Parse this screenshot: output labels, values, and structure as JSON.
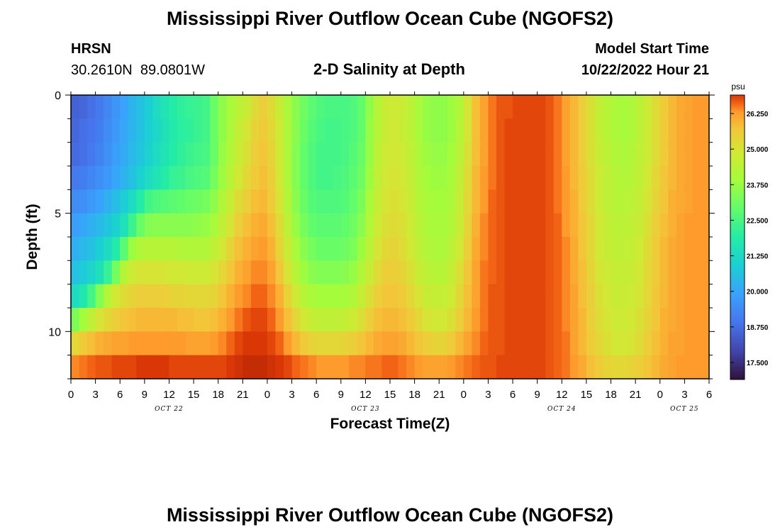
{
  "header": {
    "title": "Mississippi River Outflow Ocean Cube (NGOFS2)",
    "station_id": "HRSN",
    "coordinates": "30.2610N  89.0801W",
    "plot_title": "2-D Salinity at Depth",
    "model_start_label": "Model Start Time",
    "model_start_value": "10/22/2022 Hour 21"
  },
  "footer": {
    "title": "Mississippi River Outflow Ocean Cube (NGOFS2)"
  },
  "chart_data": {
    "type": "heatmap",
    "title": "2-D Salinity at Depth",
    "xlabel": "Forecast Time(Z)",
    "ylabel": "Depth (ft)",
    "x_hours_range": [
      0,
      78
    ],
    "y_depth_range": [
      0,
      12
    ],
    "x_tick_labels": [
      "0",
      "3",
      "6",
      "9",
      "12",
      "15",
      "18",
      "21",
      "0",
      "3",
      "6",
      "9",
      "12",
      "15",
      "18",
      "21",
      "0",
      "3",
      "6",
      "9",
      "12",
      "15",
      "18",
      "21",
      "0",
      "3",
      "6"
    ],
    "date_labels": [
      {
        "text": "OCT 22",
        "hour": 12
      },
      {
        "text": "OCT 23",
        "hour": 36
      },
      {
        "text": "OCT 24",
        "hour": 60
      },
      {
        "text": "OCT 25",
        "hour": 75
      }
    ],
    "y_ticks": [
      {
        "label": "0",
        "depth": 0
      },
      {
        "label": "5",
        "depth": 5
      },
      {
        "label": "10",
        "depth": 10
      }
    ],
    "colorbar": {
      "unit": "psu",
      "min": 16.9,
      "max": 26.9,
      "tick_labels": [
        "26.250",
        "25.000",
        "23.750",
        "22.500",
        "21.250",
        "20.000",
        "18.750",
        "17.500"
      ],
      "tick_values": [
        26.25,
        25.0,
        23.75,
        22.5,
        21.25,
        20.0,
        18.75,
        17.5
      ]
    },
    "depth_levels": [
      0.5,
      1.5,
      2.5,
      3.5,
      4.5,
      5.5,
      6.5,
      7.5,
      8.5,
      9.5,
      10.5,
      11.5
    ],
    "time_hours": [
      0,
      1,
      2,
      3,
      4,
      5,
      6,
      7,
      8,
      9,
      10,
      11,
      12,
      13,
      14,
      15,
      16,
      17,
      18,
      19,
      20,
      21,
      22,
      23,
      24,
      25,
      26,
      27,
      28,
      29,
      30,
      31,
      32,
      33,
      34,
      35,
      36,
      37,
      38,
      39,
      40,
      41,
      42,
      43,
      44,
      45,
      46,
      47,
      48,
      49,
      50,
      51,
      52,
      53,
      54,
      55,
      56,
      57,
      58,
      59,
      60,
      61,
      62,
      63,
      64,
      65,
      66,
      67,
      68,
      69,
      70,
      71,
      72,
      73,
      74,
      75,
      76,
      77
    ],
    "salinity_psu": [
      [
        18.5,
        18.6,
        18.8,
        19.0,
        19.3,
        19.6,
        19.9,
        20.3,
        20.6,
        20.9,
        21.3,
        21.6,
        21.9,
        22.1,
        22.2,
        22.3,
        22.4,
        23.0,
        23.6,
        24.0,
        24.4,
        24.7,
        25.2,
        25.5,
        25.2,
        24.7,
        24.1,
        23.5,
        23.1,
        22.8,
        22.6,
        22.5,
        22.5,
        22.5,
        22.6,
        22.9,
        23.6,
        24.3,
        24.7,
        24.8,
        24.7,
        24.4,
        24.0,
        23.7,
        23.6,
        23.6,
        23.8,
        24.2,
        25.0,
        25.8,
        26.2,
        26.5,
        26.7,
        26.7,
        26.8,
        26.8,
        26.8,
        26.8,
        26.7,
        26.5,
        26.2,
        25.9,
        25.5,
        25.1,
        24.6,
        24.3,
        24.1,
        24.0,
        24.1,
        24.4,
        24.8,
        25.2,
        25.6,
        25.9,
        26.1,
        26.2,
        26.3,
        26.3
      ],
      [
        18.6,
        18.8,
        18.9,
        19.1,
        19.4,
        19.7,
        20.0,
        20.3,
        20.6,
        20.9,
        21.2,
        21.5,
        21.8,
        22.0,
        22.1,
        22.3,
        22.4,
        23.0,
        23.6,
        24.1,
        24.6,
        25.0,
        25.4,
        25.6,
        25.3,
        24.8,
        24.1,
        23.5,
        23.0,
        22.7,
        22.5,
        22.4,
        22.4,
        22.5,
        22.6,
        22.9,
        23.7,
        24.3,
        24.7,
        24.9,
        24.7,
        24.4,
        24.0,
        23.7,
        23.6,
        23.6,
        23.8,
        24.3,
        25.0,
        25.8,
        26.2,
        26.5,
        26.7,
        26.8,
        26.8,
        26.8,
        26.8,
        26.8,
        26.7,
        26.5,
        26.2,
        25.9,
        25.5,
        25.1,
        24.6,
        24.3,
        24.1,
        24.0,
        24.1,
        24.4,
        24.8,
        25.2,
        25.6,
        25.9,
        26.1,
        26.2,
        26.3,
        26.3
      ],
      [
        18.7,
        18.8,
        19.0,
        19.2,
        19.5,
        19.8,
        20.1,
        20.4,
        20.7,
        21.0,
        21.3,
        21.6,
        21.9,
        22.1,
        22.3,
        22.4,
        22.5,
        23.0,
        23.7,
        24.2,
        24.7,
        25.1,
        25.5,
        25.7,
        25.4,
        24.8,
        24.1,
        23.4,
        22.9,
        22.6,
        22.4,
        22.4,
        22.4,
        22.5,
        22.7,
        23.0,
        23.7,
        24.4,
        24.8,
        24.9,
        24.8,
        24.5,
        24.1,
        23.8,
        23.7,
        23.7,
        23.9,
        24.4,
        25.1,
        25.8,
        26.2,
        26.5,
        26.7,
        26.8,
        26.8,
        26.8,
        26.8,
        26.8,
        26.7,
        26.5,
        26.2,
        25.9,
        25.5,
        25.1,
        24.7,
        24.4,
        24.2,
        24.1,
        24.2,
        24.5,
        24.8,
        25.2,
        25.6,
        25.9,
        26.1,
        26.2,
        26.3,
        26.3
      ],
      [
        19.0,
        19.1,
        19.3,
        19.5,
        19.7,
        20.0,
        20.3,
        20.6,
        21.0,
        21.3,
        21.6,
        21.9,
        22.2,
        22.3,
        22.5,
        22.6,
        22.7,
        23.2,
        23.8,
        24.4,
        24.9,
        25.3,
        25.6,
        25.8,
        25.5,
        24.9,
        24.1,
        23.4,
        22.9,
        22.6,
        22.4,
        22.4,
        22.5,
        22.6,
        22.8,
        23.1,
        23.8,
        24.5,
        24.9,
        25.0,
        24.9,
        24.6,
        24.2,
        23.9,
        23.8,
        23.8,
        24.0,
        24.5,
        25.2,
        25.9,
        26.3,
        26.5,
        26.7,
        26.8,
        26.8,
        26.8,
        26.8,
        26.8,
        26.7,
        26.5,
        26.3,
        25.9,
        25.6,
        25.2,
        24.8,
        24.5,
        24.3,
        24.2,
        24.3,
        24.5,
        24.9,
        25.3,
        25.7,
        25.9,
        26.1,
        26.2,
        26.3,
        26.3
      ],
      [
        19.4,
        19.5,
        19.7,
        19.9,
        20.2,
        20.5,
        20.9,
        21.3,
        21.9,
        22.4,
        22.6,
        22.7,
        22.8,
        22.9,
        23.0,
        23.1,
        23.2,
        23.6,
        24.2,
        24.7,
        25.2,
        25.5,
        25.8,
        25.9,
        25.6,
        25.0,
        24.2,
        23.5,
        23.0,
        22.7,
        22.6,
        22.6,
        22.6,
        22.7,
        22.9,
        23.3,
        24.0,
        24.6,
        25.0,
        25.1,
        25.0,
        24.7,
        24.3,
        24.0,
        23.9,
        23.9,
        24.1,
        24.6,
        25.3,
        25.9,
        26.3,
        26.6,
        26.7,
        26.8,
        26.8,
        26.8,
        26.8,
        26.8,
        26.7,
        26.5,
        26.3,
        26.0,
        25.6,
        25.2,
        24.8,
        24.5,
        24.3,
        24.3,
        24.4,
        24.6,
        25.0,
        25.4,
        25.7,
        26.0,
        26.1,
        26.2,
        26.3,
        26.3
      ],
      [
        19.8,
        20.0,
        20.2,
        20.4,
        20.7,
        21.0,
        21.5,
        22.3,
        23.0,
        23.4,
        23.5,
        23.5,
        23.5,
        23.5,
        23.5,
        23.6,
        23.7,
        24.0,
        24.5,
        25.0,
        25.5,
        25.8,
        26.0,
        26.1,
        25.8,
        25.2,
        24.4,
        23.7,
        23.2,
        22.9,
        22.8,
        22.8,
        22.8,
        22.9,
        23.1,
        23.5,
        24.2,
        24.8,
        25.1,
        25.2,
        25.1,
        24.8,
        24.4,
        24.1,
        24.0,
        24.0,
        24.2,
        24.7,
        25.4,
        26.0,
        26.4,
        26.6,
        26.7,
        26.8,
        26.8,
        26.8,
        26.8,
        26.8,
        26.7,
        26.6,
        26.3,
        26.0,
        25.7,
        25.3,
        24.9,
        24.6,
        24.4,
        24.4,
        24.5,
        24.7,
        25.1,
        25.5,
        25.8,
        26.0,
        26.2,
        26.3,
        26.3,
        26.3
      ],
      [
        20.2,
        20.4,
        20.6,
        20.9,
        21.3,
        21.8,
        22.8,
        23.8,
        24.2,
        24.3,
        24.3,
        24.3,
        24.3,
        24.2,
        24.2,
        24.2,
        24.2,
        24.5,
        24.9,
        25.4,
        25.8,
        26.0,
        26.2,
        26.3,
        26.0,
        25.4,
        24.7,
        24.0,
        23.5,
        23.2,
        23.0,
        23.0,
        23.0,
        23.1,
        23.3,
        23.8,
        24.4,
        25.0,
        25.3,
        25.4,
        25.2,
        24.9,
        24.5,
        24.2,
        24.1,
        24.1,
        24.4,
        24.9,
        25.5,
        26.1,
        26.4,
        26.6,
        26.7,
        26.8,
        26.8,
        26.8,
        26.8,
        26.8,
        26.7,
        26.6,
        26.4,
        26.1,
        25.7,
        25.3,
        24.9,
        24.7,
        24.5,
        24.5,
        24.6,
        24.8,
        25.2,
        25.6,
        25.9,
        26.1,
        26.2,
        26.3,
        26.3,
        26.3
      ],
      [
        20.6,
        20.8,
        21.1,
        21.5,
        22.2,
        23.2,
        24.3,
        24.8,
        25.0,
        25.0,
        25.0,
        25.0,
        24.9,
        24.9,
        24.8,
        24.8,
        24.8,
        25.0,
        25.3,
        25.7,
        26.0,
        26.2,
        26.4,
        26.4,
        26.2,
        25.7,
        25.0,
        24.3,
        23.8,
        23.5,
        23.4,
        23.4,
        23.4,
        23.5,
        23.7,
        24.2,
        24.7,
        25.2,
        25.5,
        25.5,
        25.4,
        25.1,
        24.7,
        24.4,
        24.3,
        24.3,
        24.6,
        25.1,
        25.7,
        26.2,
        26.5,
        26.6,
        26.7,
        26.8,
        26.8,
        26.8,
        26.8,
        26.8,
        26.7,
        26.6,
        26.4,
        26.1,
        25.8,
        25.4,
        25.0,
        24.8,
        24.6,
        24.6,
        24.7,
        24.9,
        25.3,
        25.6,
        25.9,
        26.1,
        26.2,
        26.3,
        26.3,
        26.3
      ],
      [
        21.3,
        21.7,
        22.4,
        23.4,
        24.3,
        24.9,
        25.2,
        25.4,
        25.5,
        25.5,
        25.5,
        25.5,
        25.4,
        25.4,
        25.3,
        25.3,
        25.3,
        25.4,
        25.7,
        26.0,
        26.3,
        26.4,
        26.6,
        26.6,
        26.4,
        26.0,
        25.4,
        24.8,
        24.3,
        24.0,
        23.9,
        23.9,
        23.9,
        24.0,
        24.2,
        24.6,
        25.1,
        25.5,
        25.7,
        25.7,
        25.6,
        25.3,
        25.0,
        24.7,
        24.6,
        24.6,
        24.8,
        25.3,
        25.8,
        26.2,
        26.5,
        26.7,
        26.7,
        26.8,
        26.8,
        26.8,
        26.8,
        26.8,
        26.7,
        26.6,
        26.4,
        26.2,
        25.8,
        25.5,
        25.1,
        24.9,
        24.7,
        24.7,
        24.8,
        25.0,
        25.3,
        25.7,
        25.9,
        26.1,
        26.2,
        26.3,
        26.3,
        26.3
      ],
      [
        23.3,
        23.9,
        24.5,
        25.0,
        25.3,
        25.5,
        25.7,
        25.8,
        25.9,
        25.9,
        25.9,
        25.9,
        25.9,
        25.8,
        25.8,
        25.7,
        25.7,
        25.8,
        26.0,
        26.3,
        26.5,
        26.7,
        26.8,
        26.8,
        26.6,
        26.3,
        25.8,
        25.3,
        24.9,
        24.6,
        24.5,
        24.5,
        24.5,
        24.6,
        24.8,
        25.1,
        25.5,
        25.8,
        25.9,
        25.9,
        25.8,
        25.6,
        25.3,
        25.0,
        24.9,
        24.9,
        25.1,
        25.5,
        25.9,
        26.3,
        26.5,
        26.7,
        26.7,
        26.8,
        26.8,
        26.8,
        26.8,
        26.8,
        26.7,
        26.6,
        26.4,
        26.2,
        25.9,
        25.5,
        25.2,
        25.0,
        24.8,
        24.8,
        24.9,
        25.1,
        25.4,
        25.7,
        26.0,
        26.1,
        26.2,
        26.3,
        26.3,
        26.3
      ],
      [
        25.3,
        25.6,
        25.8,
        26.0,
        26.1,
        26.2,
        26.2,
        26.3,
        26.3,
        26.3,
        26.3,
        26.3,
        26.3,
        26.3,
        26.2,
        26.2,
        26.2,
        26.3,
        26.4,
        26.6,
        26.8,
        26.9,
        26.9,
        26.9,
        26.8,
        26.6,
        26.3,
        25.9,
        25.6,
        25.4,
        25.3,
        25.3,
        25.3,
        25.4,
        25.5,
        25.7,
        25.9,
        26.1,
        26.2,
        26.2,
        26.1,
        25.9,
        25.7,
        25.5,
        25.4,
        25.4,
        25.6,
        25.9,
        26.2,
        26.4,
        26.6,
        26.7,
        26.7,
        26.8,
        26.8,
        26.8,
        26.8,
        26.8,
        26.7,
        26.6,
        26.5,
        26.2,
        25.9,
        25.6,
        25.3,
        25.1,
        24.9,
        24.9,
        25.0,
        25.2,
        25.5,
        25.8,
        26.0,
        26.2,
        26.2,
        26.3,
        26.3,
        26.3
      ],
      [
        26.4,
        26.5,
        26.6,
        26.7,
        26.7,
        26.8,
        26.8,
        26.8,
        26.9,
        26.9,
        26.9,
        26.9,
        26.8,
        26.8,
        26.8,
        26.8,
        26.8,
        26.8,
        26.8,
        26.9,
        27.0,
        27.1,
        27.1,
        27.1,
        27.0,
        26.9,
        26.8,
        26.6,
        26.5,
        26.4,
        26.3,
        26.3,
        26.3,
        26.3,
        26.4,
        26.4,
        26.5,
        26.5,
        26.6,
        26.6,
        26.5,
        26.4,
        26.3,
        26.2,
        26.2,
        26.2,
        26.3,
        26.4,
        26.5,
        26.6,
        26.7,
        26.7,
        26.8,
        26.8,
        26.8,
        26.8,
        26.8,
        26.8,
        26.7,
        26.6,
        26.5,
        26.3,
        26.1,
        25.8,
        25.6,
        25.4,
        25.3,
        25.3,
        25.4,
        25.5,
        25.7,
        25.9,
        26.1,
        26.2,
        26.3,
        26.3,
        26.3,
        26.3
      ]
    ]
  }
}
